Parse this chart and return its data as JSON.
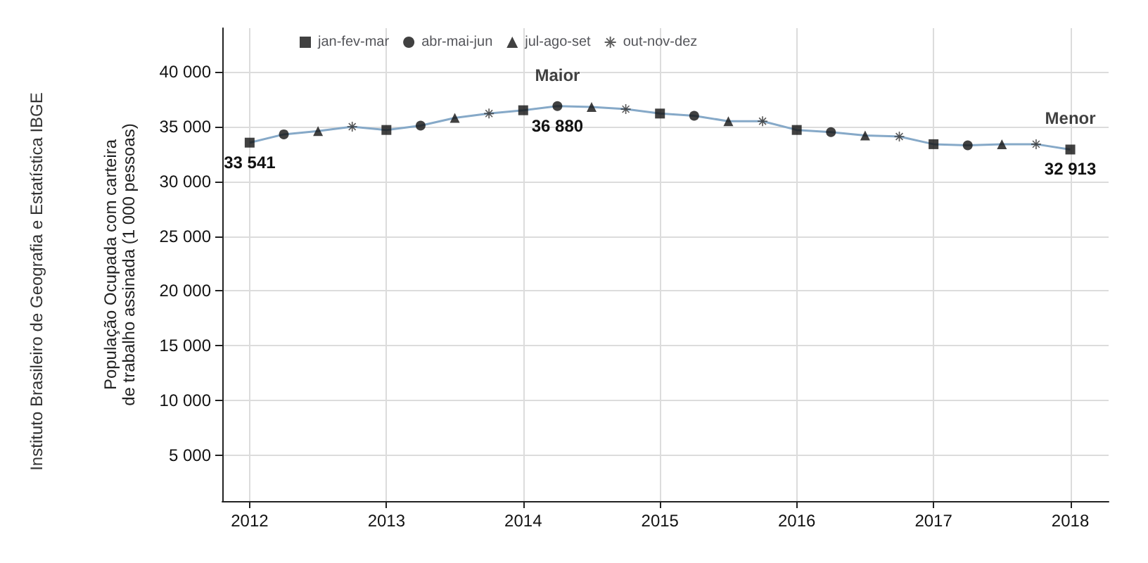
{
  "chart_data": {
    "type": "line",
    "ylabel": "População Ocupada com carteira\nde trabalho assinada (1 000 pessoas)",
    "x": [
      2012,
      2012.25,
      2012.5,
      2012.75,
      2013,
      2013.25,
      2013.5,
      2013.75,
      2014,
      2014.25,
      2014.5,
      2014.75,
      2015,
      2015.25,
      2015.5,
      2015.75,
      2016,
      2016.25,
      2016.5,
      2016.75,
      2017,
      2017.25,
      2017.5,
      2017.75,
      2018
    ],
    "series": [
      {
        "color": "#86a9c8",
        "marker": "none",
        "values": [
          33541,
          34300,
          34600,
          35000,
          34700,
          35100,
          35800,
          36200,
          36500,
          36880,
          36800,
          36600,
          36200,
          36000,
          35500,
          35500,
          34700,
          34500,
          34200,
          34100,
          33400,
          33300,
          33400,
          33400,
          32913
        ],
        "value_labels": [
          "33 541",
          null,
          null,
          null,
          null,
          null,
          null,
          null,
          null,
          "36 880",
          null,
          null,
          null,
          null,
          null,
          null,
          null,
          null,
          null,
          null,
          null,
          null,
          null,
          null,
          "32 913"
        ]
      },
      {
        "type": "scatter",
        "name": "jan-fev-mar",
        "color": "#111111",
        "marker": "square",
        "x": [
          2012,
          2013,
          2014,
          2015,
          2016,
          2017,
          2018
        ],
        "values": [
          33541,
          34700,
          36500,
          36200,
          34700,
          33400,
          32913
        ]
      },
      {
        "type": "scatter",
        "name": "abr-mai-jun",
        "color": "#111111",
        "marker": "circle",
        "x": [
          2012.25,
          2013.25,
          2014.25,
          2015.25,
          2016.25,
          2017.25
        ],
        "values": [
          34300,
          35100,
          36880,
          36000,
          34500,
          33300
        ]
      },
      {
        "type": "scatter",
        "name": "jul-ago-set",
        "color": "#111111",
        "marker": "triangle",
        "x": [
          2012.5,
          2013.5,
          2014.5,
          2015.5,
          2016.5,
          2017.5
        ],
        "values": [
          34600,
          35800,
          36800,
          35500,
          34200,
          33400
        ]
      },
      {
        "type": "scatter",
        "name": "out-nov-dez",
        "color": "#333333",
        "marker": "star",
        "x": [
          2012.75,
          2013.75,
          2014.75,
          2015.75,
          2016.75,
          2017.75
        ],
        "values": [
          35000,
          36200,
          36600,
          35500,
          34100,
          33400
        ]
      }
    ],
    "xlim": [
      2011.8,
      2018.28
    ],
    "xticks": [
      2012,
      2013,
      2014,
      2015,
      2016,
      2017,
      2018
    ],
    "ylim": [
      800,
      44000
    ],
    "yticks": [
      {
        "value": 5000,
        "label": "5 000"
      },
      {
        "value": 10000,
        "label": "10 000"
      },
      {
        "value": 15000,
        "label": "15 000"
      },
      {
        "value": 20000,
        "label": "20 000"
      },
      {
        "value": 25000,
        "label": "25 000"
      },
      {
        "value": 30000,
        "label": "30 000"
      },
      {
        "value": 35000,
        "label": "35 000"
      },
      {
        "value": 40000,
        "label": "40 000"
      }
    ],
    "grid": true,
    "legend": "top left",
    "annotations": [
      {
        "text": "Maior",
        "x": 2014.25,
        "y": 36880
      },
      {
        "text": "Menor",
        "x": 2018,
        "y": 32913
      },
      "Instituto Brasileiro de Geografia e Estatística IBGE"
    ]
  }
}
